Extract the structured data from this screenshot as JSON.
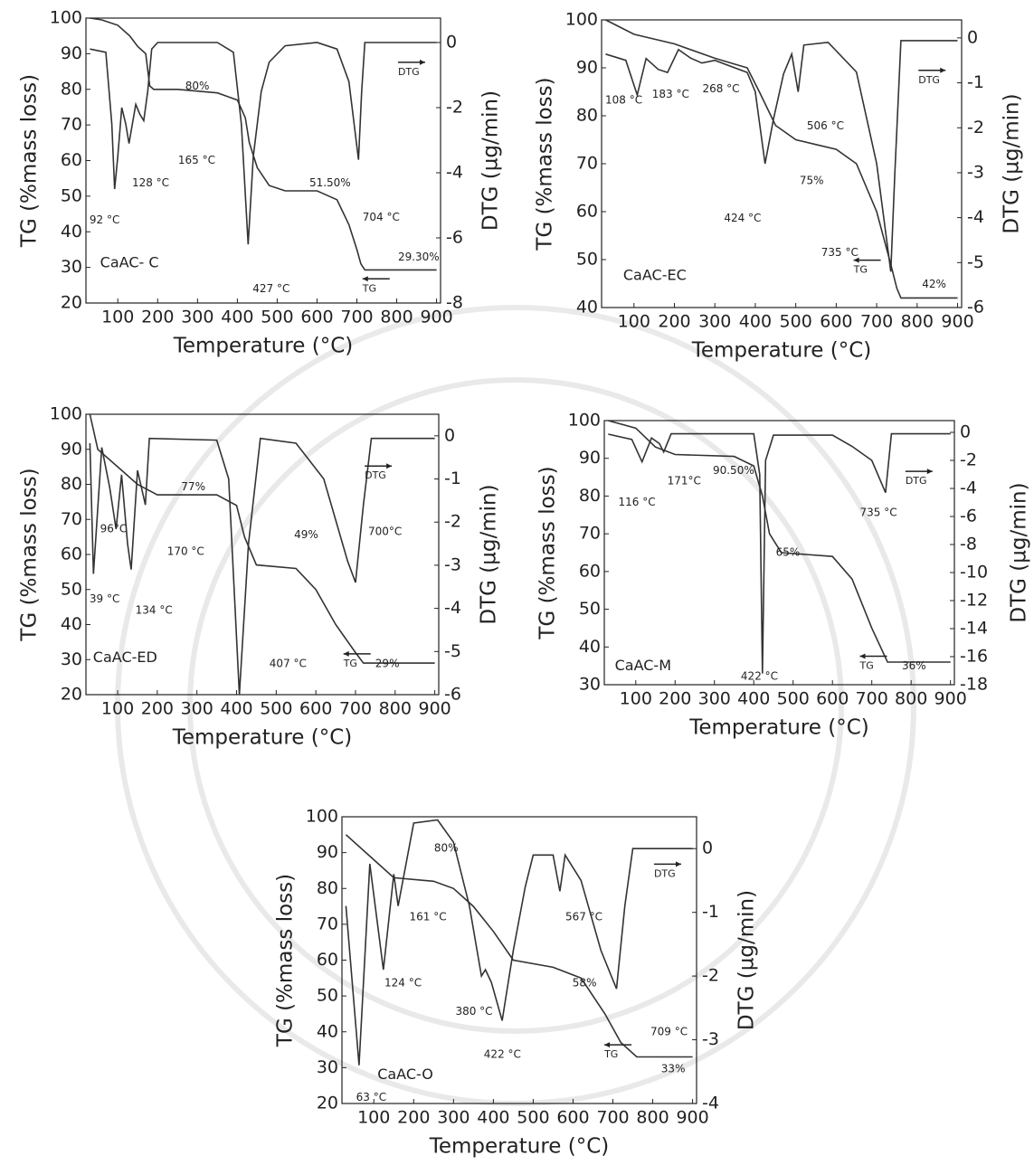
{
  "chart_data": [
    {
      "type": "line",
      "title": "CaAC- C",
      "xlabel": "Temperature (°C)",
      "ylabel": "TG (%mass loss)",
      "y2label": "DTG (µg/min)",
      "xlim": [
        20,
        910
      ],
      "xticks": [
        100,
        200,
        300,
        400,
        500,
        600,
        700,
        800,
        900
      ],
      "ylim": [
        20,
        100
      ],
      "yticks": [
        20,
        30,
        40,
        50,
        60,
        70,
        80,
        90,
        100
      ],
      "y2lim": [
        -8,
        0.75
      ],
      "y2ticks": [
        0,
        -2,
        -4,
        -6,
        -8
      ],
      "annotations": [
        "92 °C",
        "128 °C",
        "165 °C",
        "80%",
        "427 °C",
        "51.50%",
        "704 °C",
        "29.30%"
      ],
      "series": [
        {
          "name": "TG",
          "color": "#333333",
          "x": [
            30,
            60,
            100,
            130,
            150,
            170,
            180,
            190,
            250,
            350,
            400,
            420,
            430,
            450,
            480,
            520,
            600,
            650,
            680,
            700,
            710,
            720,
            800,
            900
          ],
          "values": [
            100,
            99.5,
            98,
            95,
            92,
            90,
            81,
            80,
            80,
            79,
            77,
            72,
            65,
            58,
            53,
            51.5,
            51.5,
            49,
            42,
            35,
            31,
            29.3,
            29.3,
            29.3
          ]
        },
        {
          "name": "DTG",
          "color": "#333333",
          "axis": "y2",
          "x": [
            30,
            70,
            85,
            92,
            100,
            110,
            120,
            128,
            135,
            145,
            155,
            165,
            175,
            185,
            200,
            350,
            390,
            410,
            427,
            440,
            460,
            480,
            520,
            600,
            650,
            680,
            704,
            712,
            720,
            900
          ],
          "values": [
            -0.2,
            -0.3,
            -2.5,
            -4.5,
            -3.5,
            -2,
            -2.5,
            -3.1,
            -2.6,
            -1.9,
            -2.2,
            -2.4,
            -1.5,
            -0.2,
            0,
            0,
            -0.3,
            -2.5,
            -6.2,
            -3.5,
            -1.5,
            -0.6,
            -0.1,
            0,
            -0.2,
            -1.2,
            -3.6,
            -1.5,
            0,
            0
          ]
        }
      ]
    },
    {
      "type": "line",
      "title": "CaAC-EC",
      "xlabel": "Temperature (°C)",
      "ylabel": "TG (%mass loss)",
      "y2label": "DTG (µg/min)",
      "xlim": [
        20,
        910
      ],
      "xticks": [
        100,
        200,
        300,
        400,
        500,
        600,
        700,
        800,
        900
      ],
      "ylim": [
        40,
        100
      ],
      "yticks": [
        40,
        50,
        60,
        70,
        80,
        90,
        100
      ],
      "y2lim": [
        -6,
        0.4
      ],
      "y2ticks": [
        0,
        -1,
        -2,
        -3,
        -4,
        -5,
        -6
      ],
      "annotations": [
        "108 °C",
        "183 °C",
        "268 °C",
        "506 °C",
        "424 °C",
        "75%",
        "735 °C",
        "42%"
      ],
      "series": [
        {
          "name": "TG",
          "color": "#333333",
          "x": [
            30,
            100,
            200,
            300,
            380,
            410,
            450,
            500,
            550,
            600,
            650,
            700,
            735,
            750,
            760,
            900
          ],
          "values": [
            100,
            97,
            95,
            92,
            90,
            85,
            78,
            75,
            74,
            73,
            70,
            60,
            49,
            44,
            42,
            42
          ]
        },
        {
          "name": "DTG",
          "color": "#333333",
          "axis": "y2",
          "x": [
            30,
            80,
            108,
            130,
            160,
            183,
            210,
            240,
            268,
            300,
            380,
            400,
            424,
            445,
            470,
            490,
            506,
            520,
            580,
            650,
            700,
            735,
            745,
            760,
            900
          ],
          "values": [
            -0.36,
            -0.5,
            -1.27,
            -0.46,
            -0.7,
            -0.77,
            -0.26,
            -0.45,
            -0.56,
            -0.5,
            -0.77,
            -1.2,
            -2.8,
            -1.8,
            -0.8,
            -0.36,
            -1.2,
            -0.16,
            -0.1,
            -0.76,
            -2.8,
            -5.2,
            -3,
            -0.06,
            -0.06
          ]
        }
      ]
    },
    {
      "type": "line",
      "title": "CaAC-ED",
      "xlabel": "Temperature (°C)",
      "ylabel": "TG (%mass loss)",
      "y2label": "DTG (µg/min)",
      "xlim": [
        20,
        910
      ],
      "xticks": [
        100,
        200,
        300,
        400,
        500,
        600,
        700,
        800,
        900
      ],
      "ylim": [
        20,
        100
      ],
      "yticks": [
        20,
        30,
        40,
        50,
        60,
        70,
        80,
        90,
        100
      ],
      "y2lim": [
        -6,
        0.5
      ],
      "y2ticks": [
        0,
        -1,
        -2,
        -3,
        -4,
        -5,
        -6
      ],
      "annotations": [
        "39 °C",
        "96°C",
        "134 °C",
        "170 °C",
        "77%",
        "407 °C",
        "49%",
        "700°C",
        "29%"
      ],
      "series": [
        {
          "name": "TG",
          "color": "#333333",
          "x": [
            30,
            50,
            100,
            150,
            200,
            350,
            400,
            420,
            450,
            550,
            600,
            650,
            700,
            720,
            900
          ],
          "values": [
            100,
            90,
            85,
            80,
            77,
            77,
            74,
            65,
            57,
            56,
            50,
            40,
            32,
            29,
            29
          ]
        },
        {
          "name": "DTG",
          "color": "#333333",
          "axis": "y2",
          "x": [
            30,
            39,
            60,
            80,
            96,
            110,
            125,
            134,
            150,
            170,
            180,
            350,
            380,
            407,
            430,
            460,
            550,
            620,
            680,
            700,
            720,
            740,
            900
          ],
          "values": [
            -0.17,
            -3.2,
            -0.27,
            -1.2,
            -2.16,
            -0.9,
            -2.5,
            -3.1,
            -0.8,
            -1.6,
            -0.06,
            -0.1,
            -1,
            -6,
            -2.5,
            -0.06,
            -0.17,
            -1,
            -2.9,
            -3.4,
            -1.6,
            -0.06,
            -0.06
          ]
        }
      ]
    },
    {
      "type": "line",
      "title": "CaAC-M",
      "xlabel": "Temperature (°C)",
      "ylabel": "TG (%mass loss)",
      "y2label": "DTG (µg/min)",
      "xlim": [
        20,
        910
      ],
      "xticks": [
        100,
        200,
        300,
        400,
        500,
        600,
        700,
        800,
        900
      ],
      "ylim": [
        30,
        100
      ],
      "yticks": [
        30,
        40,
        50,
        60,
        70,
        80,
        90,
        100
      ],
      "y2lim": [
        -18,
        0.84
      ],
      "y2ticks": [
        0,
        -2,
        -4,
        -6,
        -8,
        -10,
        -12,
        -14,
        -16,
        -18
      ],
      "annotations": [
        "116 °C",
        "171°C",
        "90.50%",
        "65%",
        "735 °C",
        "422 °C",
        "36%"
      ],
      "series": [
        {
          "name": "TG",
          "color": "#333333",
          "x": [
            30,
            100,
            150,
            200,
            350,
            400,
            422,
            440,
            470,
            600,
            650,
            700,
            740,
            900
          ],
          "values": [
            100,
            98,
            93,
            91,
            90.5,
            88,
            80,
            70,
            65,
            64,
            58,
            45,
            36,
            36
          ]
        },
        {
          "name": "DTG",
          "color": "#333333",
          "axis": "y2",
          "x": [
            30,
            90,
            116,
            140,
            160,
            171,
            190,
            400,
            415,
            422,
            430,
            450,
            600,
            650,
            700,
            735,
            750,
            900
          ],
          "values": [
            -0.13,
            -0.5,
            -2.1,
            -0.4,
            -0.8,
            -1.4,
            -0.1,
            -0.1,
            -3,
            -17.2,
            -2,
            -0.2,
            -0.2,
            -1,
            -2,
            -4.3,
            -0.1,
            -0.1
          ]
        }
      ]
    },
    {
      "type": "line",
      "title": "CaAC-O",
      "xlabel": "Temperature (°C)",
      "ylabel": "TG (%mass loss)",
      "y2label": "DTG (µg/min)",
      "xlim": [
        20,
        910
      ],
      "xticks": [
        100,
        200,
        300,
        400,
        500,
        600,
        700,
        800,
        900
      ],
      "ylim": [
        20,
        100
      ],
      "yticks": [
        20,
        30,
        40,
        50,
        60,
        70,
        80,
        90,
        100
      ],
      "y2lim": [
        -4,
        0.5
      ],
      "y2ticks": [
        0,
        -1,
        -2,
        -3,
        -4
      ],
      "annotations": [
        "63 °C",
        "124 °C",
        "161 °C",
        "80%",
        "380 °C",
        "422 °C",
        "567 °C",
        "58%",
        "709 °C",
        "33%"
      ],
      "series": [
        {
          "name": "TG",
          "color": "#333333",
          "x": [
            30,
            100,
            150,
            250,
            300,
            350,
            400,
            450,
            550,
            620,
            680,
            720,
            760,
            900
          ],
          "values": [
            95,
            88,
            83,
            82,
            80,
            75,
            68,
            60,
            58,
            55,
            45,
            37,
            33,
            33
          ]
        },
        {
          "name": "DTG",
          "color": "#333333",
          "axis": "y2",
          "x": [
            30,
            63,
            90,
            124,
            150,
            161,
            200,
            260,
            300,
            340,
            370,
            380,
            395,
            422,
            450,
            480,
            500,
            550,
            567,
            580,
            620,
            670,
            709,
            730,
            750,
            900
          ],
          "values": [
            -0.9,
            -3.4,
            -0.24,
            -1.9,
            -0.4,
            -0.9,
            0.4,
            0.45,
            0.1,
            -0.9,
            -2,
            -1.9,
            -2.1,
            -2.7,
            -1.6,
            -0.6,
            -0.1,
            -0.1,
            -0.67,
            -0.1,
            -0.5,
            -1.6,
            -2.2,
            -0.9,
            0,
            0
          ]
        }
      ]
    }
  ]
}
